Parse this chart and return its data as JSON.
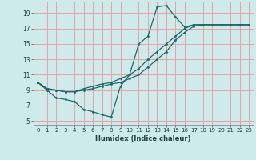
{
  "xlabel": "Humidex (Indice chaleur)",
  "bg_color": "#ceeaea",
  "grid_color": "#e8a0a8",
  "line_color": "#1a6b6b",
  "xlim": [
    -0.5,
    23.5
  ],
  "ylim": [
    4.5,
    20.5
  ],
  "xticks": [
    0,
    1,
    2,
    3,
    4,
    5,
    6,
    7,
    8,
    9,
    10,
    11,
    12,
    13,
    14,
    15,
    16,
    17,
    18,
    19,
    20,
    21,
    22,
    23
  ],
  "yticks": [
    5,
    7,
    9,
    11,
    13,
    15,
    17,
    19
  ],
  "line1_x": [
    0,
    1,
    2,
    3,
    4,
    5,
    6,
    7,
    8,
    9,
    10,
    11,
    12,
    13,
    14,
    15,
    16,
    17,
    18,
    19,
    20,
    21,
    22,
    23
  ],
  "line1_y": [
    10,
    9,
    8,
    7.8,
    7.5,
    6.5,
    6.2,
    5.8,
    5.5,
    9.5,
    11,
    15,
    16,
    19.8,
    20,
    18.5,
    17.2,
    17.5,
    17.5,
    17.5,
    17.5,
    17.5,
    17.5,
    17.5
  ],
  "line2_x": [
    0,
    1,
    2,
    3,
    4,
    5,
    6,
    7,
    8,
    9,
    10,
    11,
    12,
    13,
    14,
    15,
    16,
    17,
    18,
    19,
    20,
    21,
    22,
    23
  ],
  "line2_y": [
    10,
    9.2,
    9,
    8.8,
    8.8,
    9,
    9.2,
    9.5,
    9.8,
    10,
    10.5,
    11,
    12,
    13,
    14,
    15.5,
    16.5,
    17.3,
    17.5,
    17.5,
    17.5,
    17.5,
    17.5,
    17.5
  ],
  "line3_x": [
    0,
    1,
    2,
    3,
    4,
    5,
    6,
    7,
    8,
    9,
    10,
    11,
    12,
    13,
    14,
    15,
    16,
    17,
    18,
    19,
    20,
    21,
    22,
    23
  ],
  "line3_y": [
    10,
    9.2,
    9,
    8.8,
    8.8,
    9.2,
    9.5,
    9.8,
    10,
    10.5,
    11,
    11.8,
    13,
    14,
    15,
    16,
    17,
    17.5,
    17.5,
    17.5,
    17.5,
    17.5,
    17.5,
    17.5
  ],
  "xlabel_fontsize": 6.0,
  "tick_fontsize_x": 5.0,
  "tick_fontsize_y": 5.5
}
